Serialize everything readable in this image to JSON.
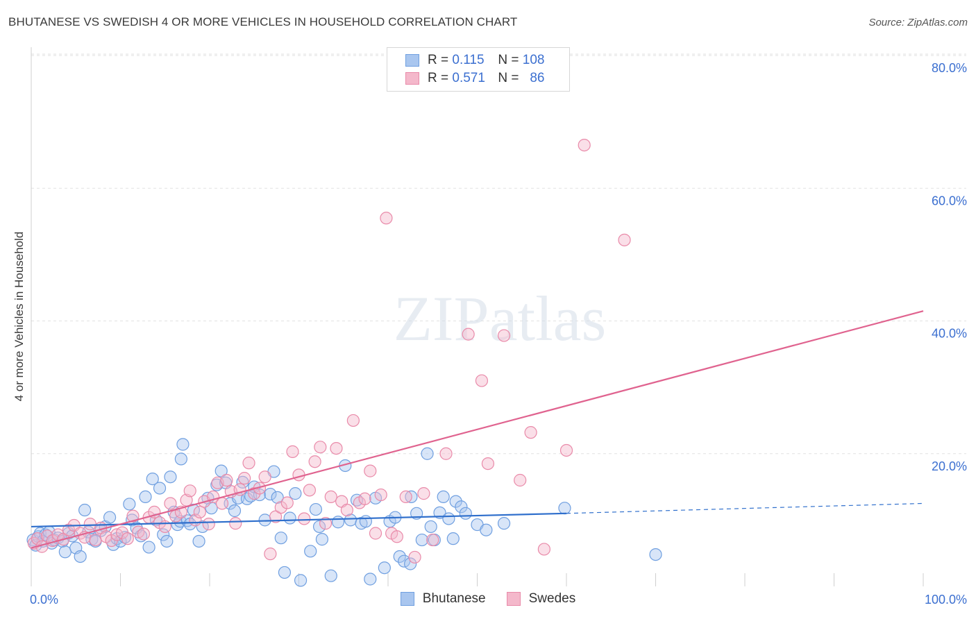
{
  "chart_data": {
    "type": "scatter",
    "title": "BHUTANESE VS SWEDISH 4 OR MORE VEHICLES IN HOUSEHOLD CORRELATION CHART",
    "source": "Source: ZipAtlas.com",
    "xlabel": "",
    "ylabel": "4 or more Vehicles in Household",
    "xlim": [
      0,
      100
    ],
    "ylim": [
      0,
      80
    ],
    "x_tick_labels": [
      "0.0%",
      "100.0%"
    ],
    "y_tick_labels": [
      "20.0%",
      "40.0%",
      "60.0%",
      "80.0%"
    ],
    "y_ticks": [
      20,
      40,
      60,
      80
    ],
    "grid": true,
    "watermark": "ZIPatlas",
    "legend": [
      {
        "name": "Bhutanese",
        "R_label": "R =",
        "R": "0.115",
        "N_label": "N =",
        "N": "108"
      },
      {
        "name": "Swedes",
        "R_label": "R =",
        "R": "0.571",
        "N_label": "N =",
        "N": "86"
      }
    ],
    "series": [
      {
        "name": "Bhutanese",
        "color": "#6f9fe0",
        "fill": "#a9c6ef",
        "line_color": "#2f6fcc",
        "trend": {
          "x0": 0,
          "y0": 9.0,
          "x1": 60,
          "y1": 11.0,
          "dash_to_x": 100,
          "dash_to_y": 12.5
        },
        "points": [
          [
            0.2,
            7.0
          ],
          [
            0.5,
            6.2
          ],
          [
            0.8,
            7.5
          ],
          [
            1.0,
            8.0
          ],
          [
            1.3,
            6.8
          ],
          [
            1.6,
            7.8
          ],
          [
            2.0,
            8.2
          ],
          [
            2.3,
            6.5
          ],
          [
            2.6,
            7.0
          ],
          [
            3.0,
            7.3
          ],
          [
            3.5,
            6.8
          ],
          [
            3.8,
            5.2
          ],
          [
            4.2,
            8.0
          ],
          [
            4.6,
            7.6
          ],
          [
            5.0,
            5.8
          ],
          [
            5.5,
            4.5
          ],
          [
            6.0,
            11.5
          ],
          [
            6.4,
            8.2
          ],
          [
            6.8,
            7.1
          ],
          [
            7.2,
            6.8
          ],
          [
            7.8,
            8.4
          ],
          [
            8.3,
            9.0
          ],
          [
            8.8,
            10.4
          ],
          [
            9.2,
            6.3
          ],
          [
            9.6,
            7.2
          ],
          [
            10.0,
            6.8
          ],
          [
            10.5,
            7.4
          ],
          [
            11.0,
            12.4
          ],
          [
            11.3,
            10.0
          ],
          [
            11.8,
            8.8
          ],
          [
            12.3,
            7.6
          ],
          [
            12.8,
            13.5
          ],
          [
            13.2,
            5.9
          ],
          [
            13.6,
            16.2
          ],
          [
            14.0,
            10.0
          ],
          [
            14.4,
            14.8
          ],
          [
            14.8,
            7.8
          ],
          [
            15.2,
            6.8
          ],
          [
            15.6,
            16.5
          ],
          [
            16.0,
            11.2
          ],
          [
            16.4,
            9.3
          ],
          [
            16.7,
            9.8
          ],
          [
            17.0,
            21.4
          ],
          [
            16.8,
            19.2
          ],
          [
            17.5,
            9.9
          ],
          [
            17.8,
            9.4
          ],
          [
            18.2,
            11.5
          ],
          [
            18.8,
            6.8
          ],
          [
            19.2,
            9.0
          ],
          [
            19.8,
            13.3
          ],
          [
            20.2,
            11.8
          ],
          [
            20.8,
            15.3
          ],
          [
            21.3,
            17.4
          ],
          [
            21.8,
            15.6
          ],
          [
            22.3,
            12.5
          ],
          [
            22.8,
            11.4
          ],
          [
            23.2,
            13.3
          ],
          [
            23.7,
            15.7
          ],
          [
            24.2,
            13.2
          ],
          [
            24.6,
            13.6
          ],
          [
            25.0,
            15.0
          ],
          [
            25.6,
            13.8
          ],
          [
            26.2,
            10.0
          ],
          [
            26.8,
            13.9
          ],
          [
            27.2,
            17.3
          ],
          [
            27.6,
            13.4
          ],
          [
            28.0,
            7.3
          ],
          [
            28.4,
            2.1
          ],
          [
            29.0,
            10.3
          ],
          [
            29.6,
            14.0
          ],
          [
            30.2,
            0.9
          ],
          [
            31.3,
            5.3
          ],
          [
            31.9,
            11.6
          ],
          [
            32.3,
            9.0
          ],
          [
            32.6,
            7.1
          ],
          [
            33.6,
            1.6
          ],
          [
            34.4,
            9.7
          ],
          [
            35.2,
            18.2
          ],
          [
            35.8,
            10.0
          ],
          [
            36.5,
            13.0
          ],
          [
            37.0,
            9.5
          ],
          [
            37.5,
            9.8
          ],
          [
            38.0,
            1.1
          ],
          [
            38.6,
            13.3
          ],
          [
            39.6,
            2.8
          ],
          [
            40.2,
            9.8
          ],
          [
            40.8,
            10.4
          ],
          [
            41.3,
            4.5
          ],
          [
            41.8,
            3.8
          ],
          [
            42.5,
            3.4
          ],
          [
            42.6,
            13.5
          ],
          [
            43.2,
            11.0
          ],
          [
            43.8,
            7.0
          ],
          [
            44.4,
            20.0
          ],
          [
            44.8,
            9.0
          ],
          [
            45.2,
            7.0
          ],
          [
            45.8,
            11.1
          ],
          [
            46.2,
            13.5
          ],
          [
            46.8,
            10.2
          ],
          [
            47.3,
            7.2
          ],
          [
            47.6,
            12.8
          ],
          [
            48.2,
            12.0
          ],
          [
            48.7,
            11.0
          ],
          [
            50.0,
            9.3
          ],
          [
            51.0,
            8.5
          ],
          [
            53.0,
            9.5
          ],
          [
            70.0,
            4.8
          ],
          [
            59.8,
            11.8
          ]
        ]
      },
      {
        "name": "Swedes",
        "color": "#e98aa9",
        "fill": "#f4b8cb",
        "line_color": "#e0638f",
        "trend": {
          "x0": 0,
          "y0": 5.8,
          "x1": 100,
          "y1": 41.5
        },
        "points": [
          [
            0.3,
            6.5
          ],
          [
            0.7,
            7.2
          ],
          [
            1.2,
            6.0
          ],
          [
            1.8,
            7.6
          ],
          [
            2.4,
            6.9
          ],
          [
            3.0,
            7.8
          ],
          [
            3.6,
            7.1
          ],
          [
            4.2,
            8.5
          ],
          [
            4.8,
            9.2
          ],
          [
            5.5,
            8.0
          ],
          [
            6.0,
            7.4
          ],
          [
            6.6,
            9.4
          ],
          [
            7.2,
            7.0
          ],
          [
            7.8,
            8.8
          ],
          [
            8.4,
            7.5
          ],
          [
            9.0,
            6.9
          ],
          [
            9.6,
            7.8
          ],
          [
            10.2,
            8.1
          ],
          [
            10.8,
            7.2
          ],
          [
            11.4,
            10.6
          ],
          [
            12.0,
            8.2
          ],
          [
            12.6,
            7.9
          ],
          [
            13.2,
            10.4
          ],
          [
            13.8,
            11.2
          ],
          [
            14.4,
            9.6
          ],
          [
            15.0,
            9.0
          ],
          [
            15.6,
            12.5
          ],
          [
            16.2,
            10.6
          ],
          [
            16.8,
            11.2
          ],
          [
            17.4,
            13.0
          ],
          [
            17.8,
            14.4
          ],
          [
            18.4,
            10.0
          ],
          [
            18.9,
            11.2
          ],
          [
            19.4,
            12.8
          ],
          [
            19.9,
            9.4
          ],
          [
            20.4,
            13.5
          ],
          [
            20.9,
            15.6
          ],
          [
            21.4,
            12.5
          ],
          [
            21.9,
            16.0
          ],
          [
            22.4,
            14.3
          ],
          [
            22.9,
            9.5
          ],
          [
            23.4,
            14.6
          ],
          [
            23.9,
            16.3
          ],
          [
            24.4,
            18.6
          ],
          [
            25.0,
            14.0
          ],
          [
            25.6,
            14.8
          ],
          [
            26.2,
            16.5
          ],
          [
            26.8,
            4.9
          ],
          [
            27.4,
            10.5
          ],
          [
            28.0,
            11.9
          ],
          [
            28.7,
            12.6
          ],
          [
            29.3,
            20.3
          ],
          [
            30.0,
            16.8
          ],
          [
            30.6,
            10.2
          ],
          [
            31.2,
            14.5
          ],
          [
            31.8,
            18.8
          ],
          [
            32.4,
            21.0
          ],
          [
            33.0,
            9.5
          ],
          [
            33.6,
            13.5
          ],
          [
            34.2,
            20.8
          ],
          [
            34.8,
            12.8
          ],
          [
            35.4,
            11.5
          ],
          [
            36.1,
            25.0
          ],
          [
            36.8,
            12.6
          ],
          [
            37.4,
            13.2
          ],
          [
            38.0,
            17.4
          ],
          [
            38.6,
            8.0
          ],
          [
            39.2,
            13.8
          ],
          [
            39.8,
            55.5
          ],
          [
            40.4,
            8.0
          ],
          [
            41.0,
            7.5
          ],
          [
            42.0,
            13.5
          ],
          [
            43.0,
            4.4
          ],
          [
            44.0,
            14.0
          ],
          [
            45.0,
            7.0
          ],
          [
            46.5,
            20.0
          ],
          [
            49.0,
            38.0
          ],
          [
            50.5,
            31.0
          ],
          [
            51.2,
            18.5
          ],
          [
            53.0,
            37.8
          ],
          [
            54.8,
            16.0
          ],
          [
            56.0,
            23.2
          ],
          [
            57.5,
            5.6
          ],
          [
            60.0,
            20.5
          ],
          [
            62.0,
            66.5
          ],
          [
            66.5,
            52.2
          ]
        ]
      }
    ]
  }
}
